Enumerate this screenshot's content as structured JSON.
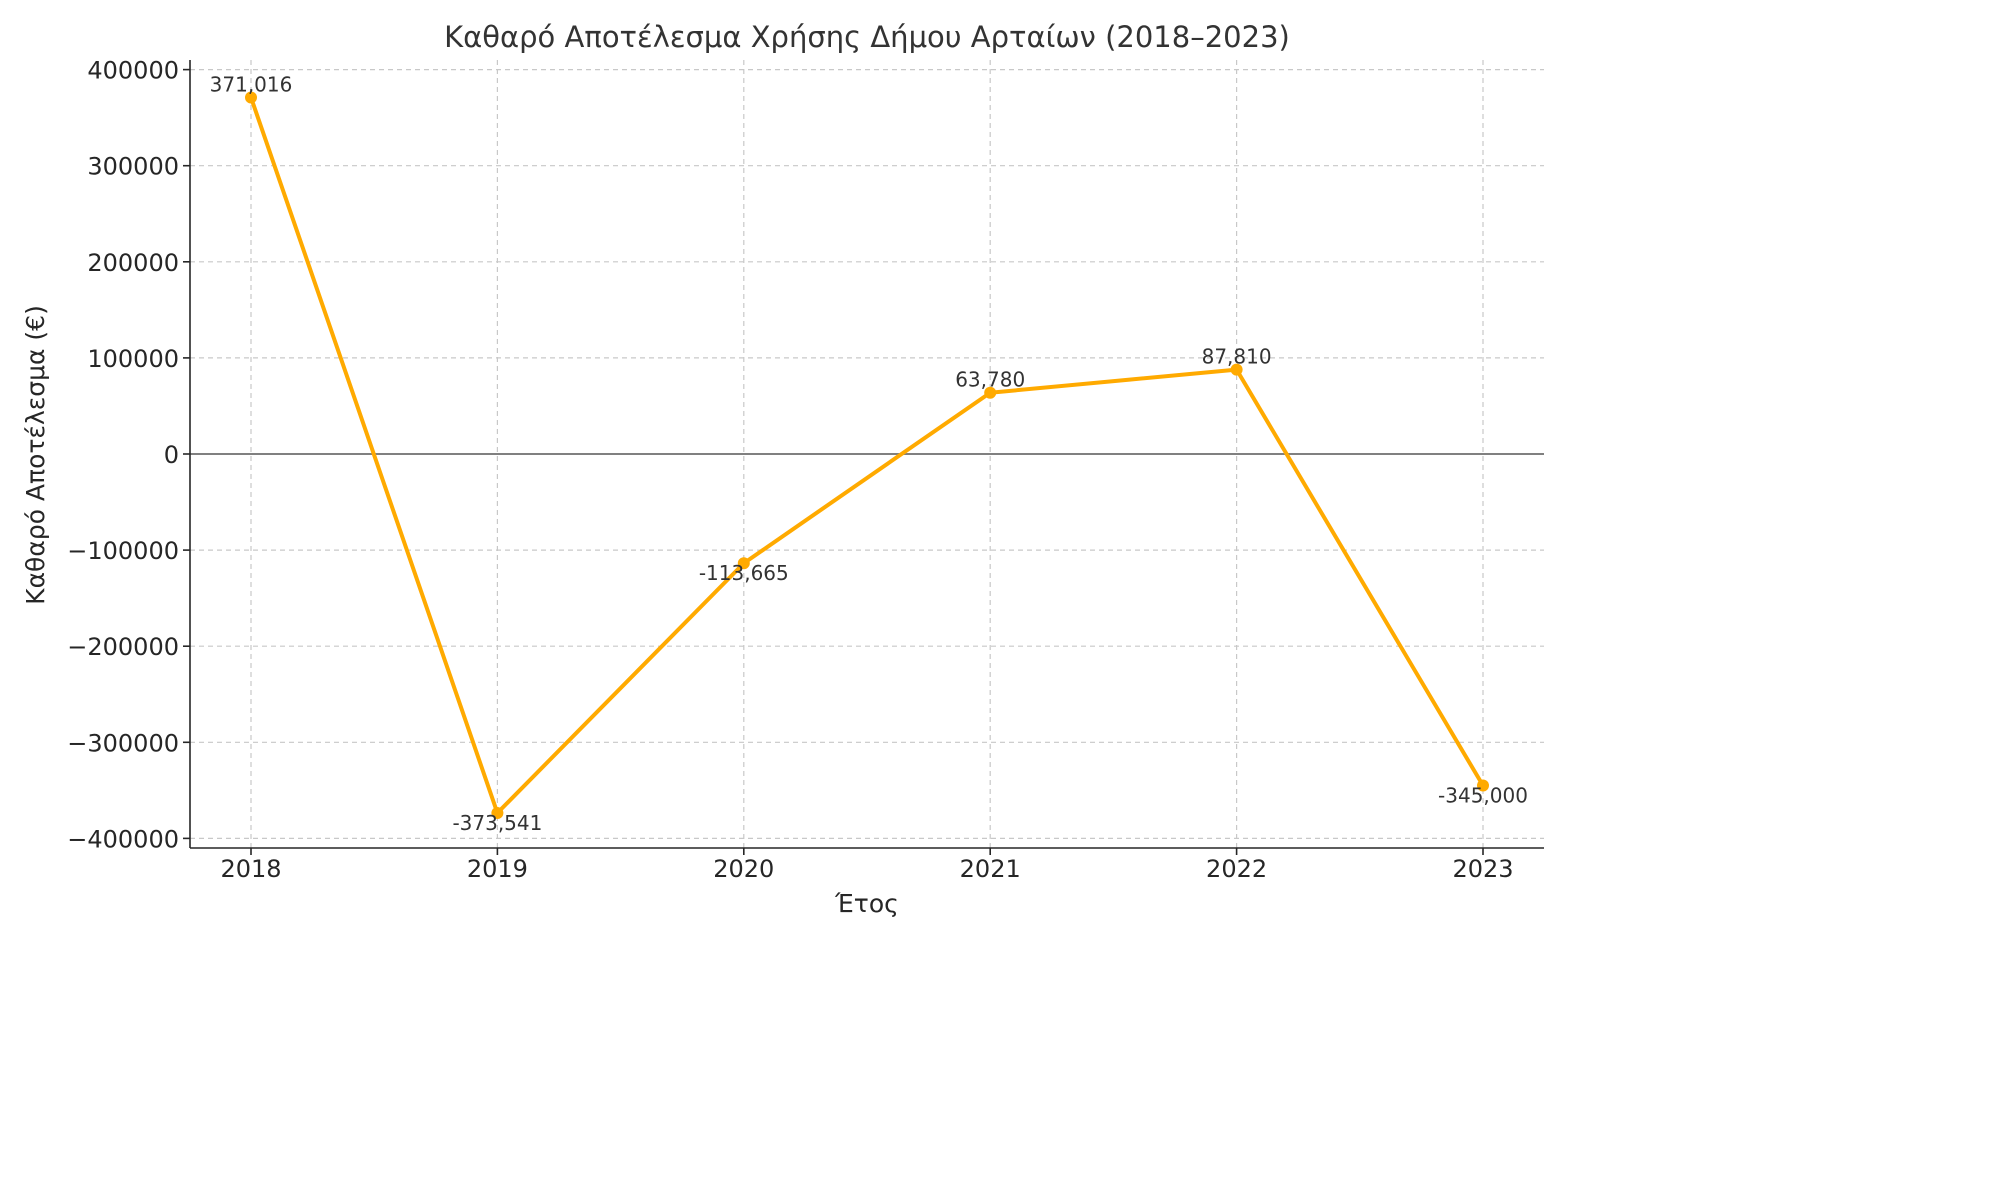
{
  "chart_data": {
    "type": "line",
    "title": "Καθαρό Αποτέλεσμα Χρήσης Δήμου Αρταίων (2018–2023)",
    "xlabel": "Έτος",
    "ylabel": "Καθαρό Αποτέλεσμα (€)",
    "x": [
      2018,
      2019,
      2020,
      2021,
      2022,
      2023
    ],
    "x_tick_labels": [
      "2018",
      "2019",
      "2020",
      "2021",
      "2022",
      "2023"
    ],
    "values": [
      371016,
      -373541,
      -113665,
      63780,
      87810,
      -345000
    ],
    "data_labels": [
      "371,016",
      "-373,541",
      "-113,665",
      "63,780",
      "87,810",
      "-345,000"
    ],
    "ylim": [
      -410000,
      410000
    ],
    "y_ticks": [
      400000,
      300000,
      200000,
      100000,
      0,
      -100000,
      -200000,
      -300000,
      -400000
    ],
    "y_tick_labels": [
      "400000",
      "300000",
      "200000",
      "100000",
      "0",
      "−100000",
      "−200000",
      "−300000",
      "−400000"
    ],
    "grid": true,
    "zero_line": true,
    "colors": {
      "series": "#FFAA00",
      "zero_line": "#808080",
      "grid": "#c8c8c8"
    }
  }
}
